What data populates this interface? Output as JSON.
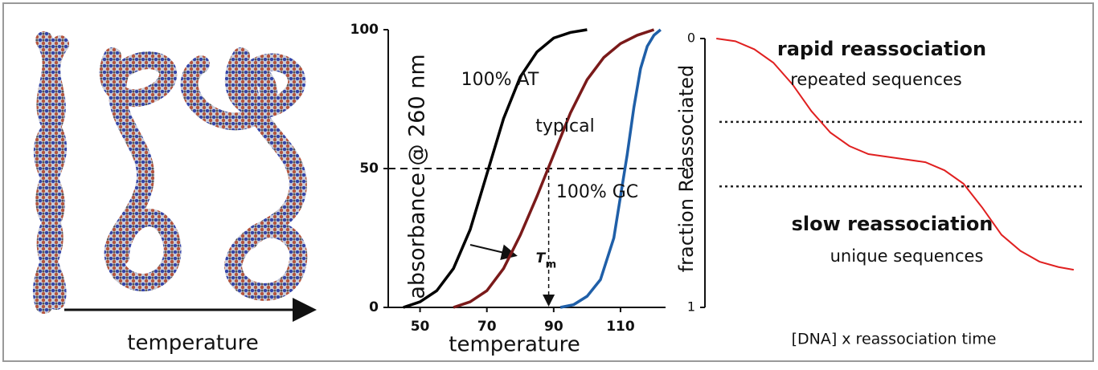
{
  "illustration": {
    "caption": "temperature"
  },
  "chart_data": [
    {
      "type": "line",
      "y_label": "absorbance @ 260 nm",
      "x_label": "temperature",
      "xlim": [
        40,
        123
      ],
      "xticks": [
        50,
        70,
        90,
        110
      ],
      "ylim": [
        0,
        100
      ],
      "yticks": [
        0,
        50,
        100
      ],
      "reference_y": 50,
      "tm_x": 88.5,
      "tm_label": {
        "text": "T",
        "subscript": "m"
      },
      "series": [
        {
          "name": "100% AT",
          "color": "#000000",
          "x": [
            45,
            50,
            55,
            60,
            65,
            70,
            75,
            80,
            85,
            90,
            95,
            100
          ],
          "values": [
            0,
            2,
            6,
            14,
            28,
            48,
            68,
            83,
            92,
            97,
            99,
            100
          ]
        },
        {
          "name": "typical",
          "color": "#7a1a1a",
          "x": [
            60,
            65,
            70,
            75,
            80,
            85,
            90,
            95,
            100,
            105,
            110,
            115,
            120
          ],
          "values": [
            0,
            2,
            6,
            14,
            26,
            40,
            55,
            70,
            82,
            90,
            95,
            98,
            100
          ]
        },
        {
          "name": "100% GC",
          "color": "#1f5fa8",
          "x": [
            92,
            96,
            100,
            104,
            108,
            110,
            112,
            114,
            116,
            118,
            120,
            122
          ],
          "values": [
            0,
            1,
            4,
            10,
            25,
            40,
            55,
            72,
            86,
            94,
            98,
            100
          ]
        }
      ]
    },
    {
      "type": "line",
      "y_label": "fraction Reassociated",
      "x_label": "[DNA] x reassociation time",
      "xlim": [
        0,
        100
      ],
      "ylim": [
        0,
        1
      ],
      "yticks": [
        0,
        1
      ],
      "y_inverted": true,
      "reference_lines": [
        0.31,
        0.55
      ],
      "annotations": [
        "rapid reassociation",
        "repeated sequences",
        "slow reassociation",
        "unique sequences"
      ],
      "series": [
        {
          "color": "#e02020",
          "x": [
            3,
            8,
            13,
            18,
            23,
            28,
            33,
            38,
            43,
            48,
            53,
            58,
            63,
            68,
            73,
            78,
            83,
            88,
            93,
            97
          ],
          "values": [
            0,
            0.01,
            0.04,
            0.09,
            0.17,
            0.27,
            0.35,
            0.4,
            0.43,
            0.44,
            0.45,
            0.46,
            0.49,
            0.54,
            0.63,
            0.73,
            0.79,
            0.83,
            0.85,
            0.86
          ]
        }
      ]
    }
  ]
}
